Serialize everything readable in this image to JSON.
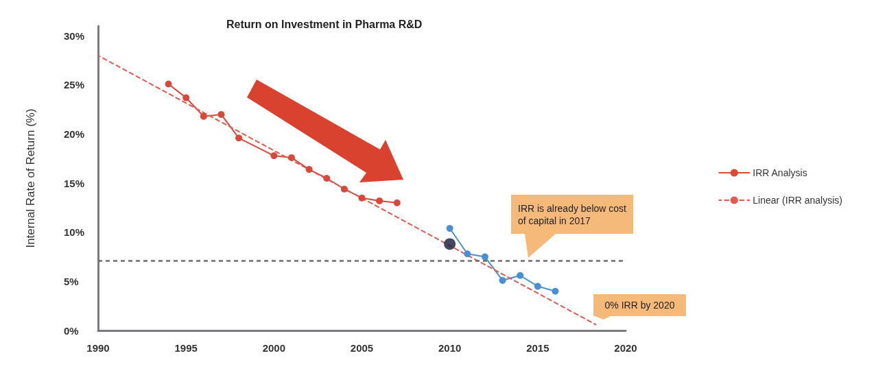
{
  "chart_data": {
    "type": "line",
    "title": "Return on Investment in Pharma R&D",
    "ylabel": "Internal Rate of Return (%)",
    "xlim": [
      1990,
      2020
    ],
    "xticks": [
      1990,
      1995,
      2000,
      2005,
      2010,
      2015,
      2020
    ],
    "ylim": [
      0,
      31
    ],
    "yticks": [
      {
        "value": 0,
        "label": "0%"
      },
      {
        "value": 5,
        "label": "5%"
      },
      {
        "value": 10,
        "label": "10%"
      },
      {
        "value": 15,
        "label": "15%"
      },
      {
        "value": 20,
        "label": "20%"
      },
      {
        "value": 25,
        "label": "25%"
      },
      {
        "value": 30,
        "label": "30%"
      }
    ],
    "grid": false,
    "legend": "right",
    "marker": "circle",
    "line_style": "solid",
    "series": [
      {
        "name": "IRR Analysis",
        "color": "#d9483b",
        "x": [
          1994,
          1995,
          1996,
          1997,
          1998,
          2000,
          2001,
          2002,
          2003,
          2004,
          2005,
          2006,
          2007
        ],
        "values": [
          25.1,
          23.7,
          21.8,
          22.0,
          19.6,
          17.8,
          17.6,
          16.4,
          15.5,
          14.4,
          13.5,
          13.2,
          13.0
        ]
      },
      {
        "color": "#4a8fd4",
        "x": [
          2010,
          2011,
          2012,
          2013,
          2014,
          2015,
          2016
        ],
        "values": [
          10.4,
          7.8,
          7.5,
          5.1,
          5.6,
          4.5,
          4.0
        ]
      },
      {
        "type": "scatter",
        "color": "#141a3c",
        "x": [
          2010
        ],
        "values": [
          8.8
        ]
      },
      {
        "name": "Linear (IRR analysis)",
        "color": "#e05a4e",
        "line_style": "dashed",
        "marker": "none",
        "x": [
          1990,
          2018.3
        ],
        "values": [
          28.0,
          0.6
        ]
      }
    ],
    "ref_lines": [
      {
        "axis": "y",
        "value": 7.1,
        "color": "#6e6e6e",
        "line_style": "dashed"
      }
    ],
    "annotations": [
      "IRR is already below cost of capital in 2017",
      "0% IRR by 2020"
    ]
  }
}
